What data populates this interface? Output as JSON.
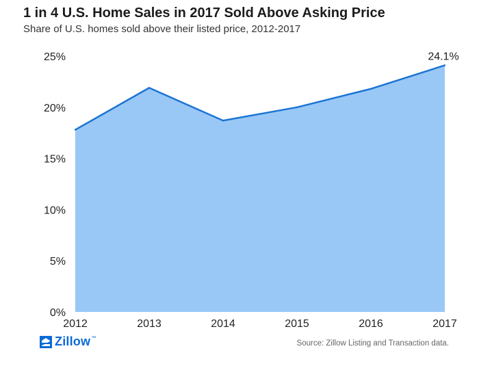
{
  "chart_data": {
    "type": "area",
    "title": "1 in 4 U.S. Home Sales in 2017 Sold Above Asking Price",
    "subtitle": "Share of U.S. homes sold above their listed price, 2012-2017",
    "categories": [
      "2012",
      "2013",
      "2014",
      "2015",
      "2016",
      "2017"
    ],
    "series": [
      {
        "values": [
          17.8,
          21.9,
          18.7,
          20.0,
          21.8,
          24.1
        ]
      }
    ],
    "ylim": [
      0,
      25
    ],
    "yticks": [
      0,
      5,
      10,
      15,
      20,
      25
    ],
    "ytick_labels": [
      "0%",
      "5%",
      "10%",
      "15%",
      "20%",
      "25%"
    ],
    "annotation": {
      "category": "2017",
      "value": 24.1,
      "label": "24.1%"
    },
    "grid": false,
    "fill_color": "#99c8f6",
    "line_color": "#1c74d3"
  },
  "footer": {
    "logo_text": "Zillow",
    "logo_tm": "™",
    "source": "Source: Zillow Listing and Transaction data."
  }
}
